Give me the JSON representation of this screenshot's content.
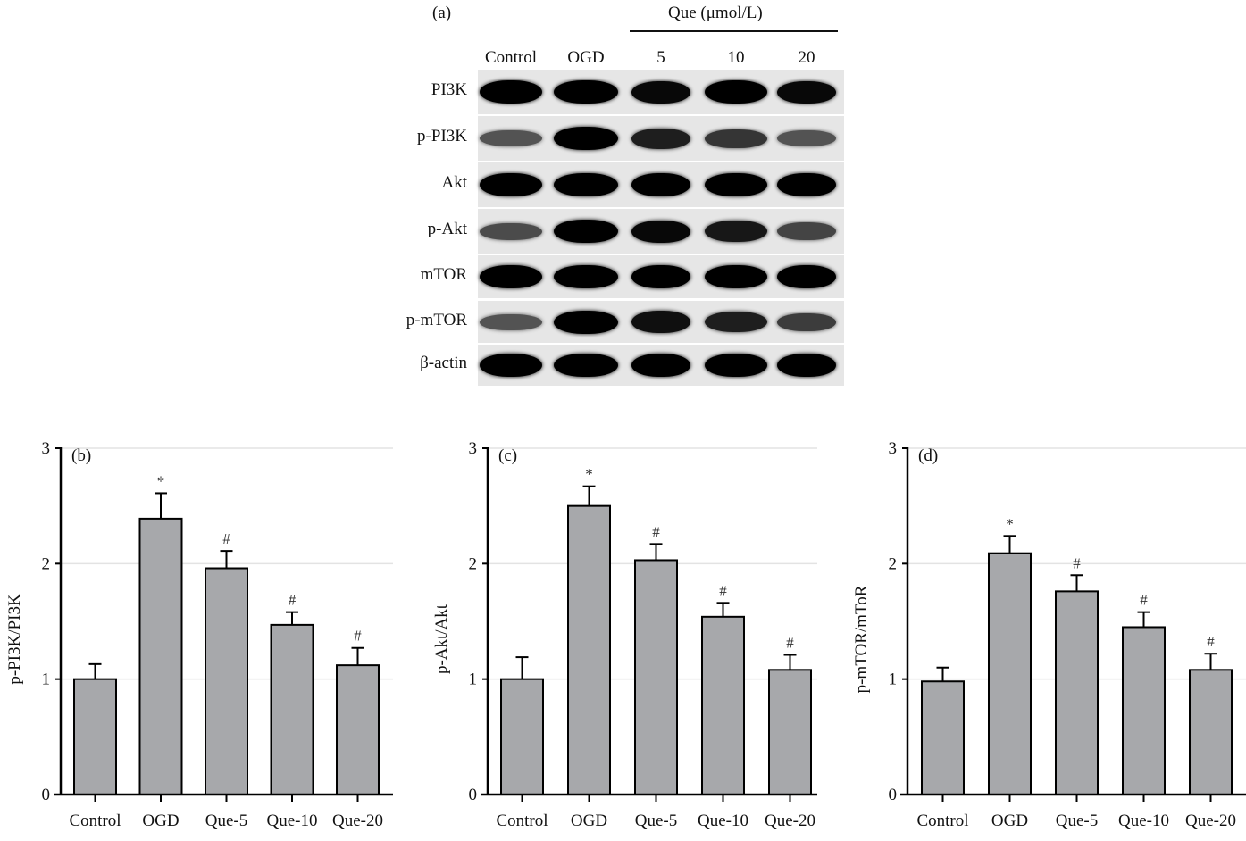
{
  "figure": {
    "panel_a": {
      "label": "(a)",
      "treatment_header": "Que (μmol/L)",
      "lanes": [
        "Control",
        "OGD",
        "5",
        "10",
        "20"
      ],
      "rows": [
        {
          "label": "PI3K",
          "intensity": [
            1.0,
            1.0,
            0.95,
            1.0,
            0.95
          ]
        },
        {
          "label": "p-PI3K",
          "intensity": [
            0.45,
            1.0,
            0.8,
            0.65,
            0.45
          ]
        },
        {
          "label": "Akt",
          "intensity": [
            1.0,
            1.0,
            1.0,
            1.0,
            1.0
          ]
        },
        {
          "label": "p-Akt",
          "intensity": [
            0.5,
            1.0,
            0.95,
            0.85,
            0.55
          ]
        },
        {
          "label": "mTOR",
          "intensity": [
            1.0,
            1.0,
            1.0,
            1.0,
            1.0
          ]
        },
        {
          "label": "p-mTOR",
          "intensity": [
            0.45,
            1.0,
            0.9,
            0.8,
            0.6
          ]
        },
        {
          "label": "β-actin",
          "intensity": [
            1.0,
            1.0,
            1.0,
            1.0,
            1.0
          ]
        }
      ]
    }
  },
  "chart_data": [
    {
      "type": "bar",
      "panel": "(b)",
      "title": "",
      "xlabel": "",
      "ylabel": "p-PI3K/PI3K",
      "categories": [
        "Control",
        "OGD",
        "Que-5",
        "Que-10",
        "Que-20"
      ],
      "values": [
        1.0,
        2.39,
        1.96,
        1.47,
        1.12
      ],
      "error_upper": [
        1.13,
        2.61,
        2.11,
        1.58,
        1.27
      ],
      "annotations": [
        "",
        "*",
        "#",
        "#",
        "#"
      ],
      "ylim": [
        0,
        3
      ],
      "yticks": [
        0,
        1,
        2,
        3
      ],
      "grid": true,
      "bar_color": "#a7a8ab"
    },
    {
      "type": "bar",
      "panel": "(c)",
      "title": "",
      "xlabel": "",
      "ylabel": "p-Akt/Akt",
      "categories": [
        "Control",
        "OGD",
        "Que-5",
        "Que-10",
        "Que-20"
      ],
      "values": [
        1.0,
        2.5,
        2.03,
        1.54,
        1.08
      ],
      "error_upper": [
        1.19,
        2.67,
        2.17,
        1.66,
        1.21
      ],
      "annotations": [
        "",
        "*",
        "#",
        "#",
        "#"
      ],
      "ylim": [
        0,
        3
      ],
      "yticks": [
        0,
        1,
        2,
        3
      ],
      "grid": true,
      "bar_color": "#a7a8ab"
    },
    {
      "type": "bar",
      "panel": "(d)",
      "title": "",
      "xlabel": "",
      "ylabel": "p-mTOR/mToR",
      "categories": [
        "Control",
        "OGD",
        "Que-5",
        "Que-10",
        "Que-20"
      ],
      "values": [
        0.98,
        2.09,
        1.76,
        1.45,
        1.08
      ],
      "error_upper": [
        1.1,
        2.24,
        1.9,
        1.58,
        1.22
      ],
      "annotations": [
        "",
        "*",
        "#",
        "#",
        "#"
      ],
      "ylim": [
        0,
        3
      ],
      "yticks": [
        0,
        1,
        2,
        3
      ],
      "grid": true,
      "bar_color": "#a7a8ab"
    }
  ]
}
